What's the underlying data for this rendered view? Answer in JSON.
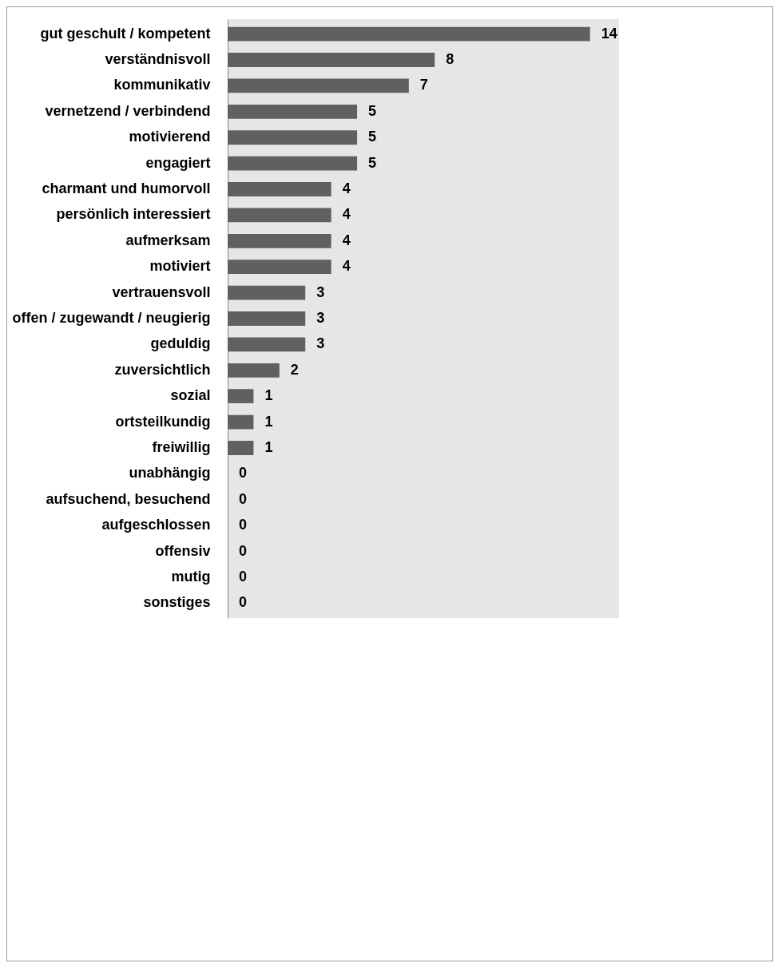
{
  "chart_data": {
    "type": "bar",
    "orientation": "horizontal",
    "data_labels": true,
    "color": "#606060",
    "categories": [
      "gut geschult / kompetent",
      "verständnisvoll",
      "kommunikativ",
      "vernetzend / verbindend",
      "motivierend",
      "engagiert",
      "charmant und humorvoll",
      "persönlich interessiert",
      "aufmerksam",
      "motiviert",
      "vertrauensvoll",
      "offen / zugewandt / neugierig",
      "geduldig",
      "zuversichtlich",
      "sozial",
      "ortsteilkundig",
      "freiwillig",
      "unabhängig",
      "aufsuchend, besuchend",
      "aufgeschlossen",
      "offensiv",
      "mutig",
      "sonstiges"
    ],
    "values": [
      14,
      8,
      7,
      5,
      5,
      5,
      4,
      4,
      4,
      4,
      3,
      3,
      3,
      2,
      1,
      1,
      1,
      0,
      0,
      0,
      0,
      0,
      0
    ]
  }
}
